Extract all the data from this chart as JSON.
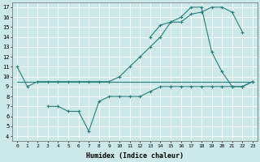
{
  "xlabel": "Humidex (Indice chaleur)",
  "background_color": "#cce8e8",
  "grid_color": "#ffffff",
  "line_color": "#2d7d7d",
  "xlim": [
    -0.5,
    23.5
  ],
  "ylim": [
    3.5,
    17.5
  ],
  "xticks": [
    0,
    1,
    2,
    3,
    4,
    5,
    6,
    7,
    8,
    9,
    10,
    11,
    12,
    13,
    14,
    15,
    16,
    17,
    18,
    19,
    20,
    21,
    22,
    23
  ],
  "yticks": [
    4,
    5,
    6,
    7,
    8,
    9,
    10,
    11,
    12,
    13,
    14,
    15,
    16,
    17
  ],
  "line1_x": [
    0,
    1,
    2,
    3,
    4,
    5,
    6,
    7,
    8,
    9,
    10,
    11,
    12,
    13,
    14,
    15,
    16,
    17,
    18,
    19,
    20,
    21,
    22,
    23
  ],
  "line1_y": [
    11,
    9,
    9.5,
    9.5,
    9.5,
    9.5,
    9.5,
    9.5,
    9.5,
    9.5,
    10,
    11,
    12,
    13,
    14,
    15.5,
    16,
    17,
    17,
    12.5,
    10.5,
    9,
    9,
    9.5
  ],
  "line2_x": [
    0,
    23
  ],
  "line2_y": [
    9.5,
    9.5
  ],
  "line3_x": [
    3,
    4,
    5,
    6,
    7,
    8,
    9,
    10,
    11,
    12,
    13,
    14,
    15,
    16,
    17,
    18,
    19,
    20,
    21,
    22,
    23
  ],
  "line3_y": [
    7,
    7,
    6.5,
    6.5,
    4.5,
    7.5,
    8,
    8,
    8,
    8,
    8.5,
    9,
    9,
    9,
    9,
    9,
    9,
    9,
    9,
    9,
    9.5
  ],
  "line4_x": [
    13,
    14,
    15,
    16,
    17,
    18,
    19,
    20,
    21,
    22
  ],
  "line4_y": [
    14,
    15.2,
    15.5,
    15.5,
    16.3,
    16.5,
    17,
    17,
    16.5,
    14.5
  ]
}
